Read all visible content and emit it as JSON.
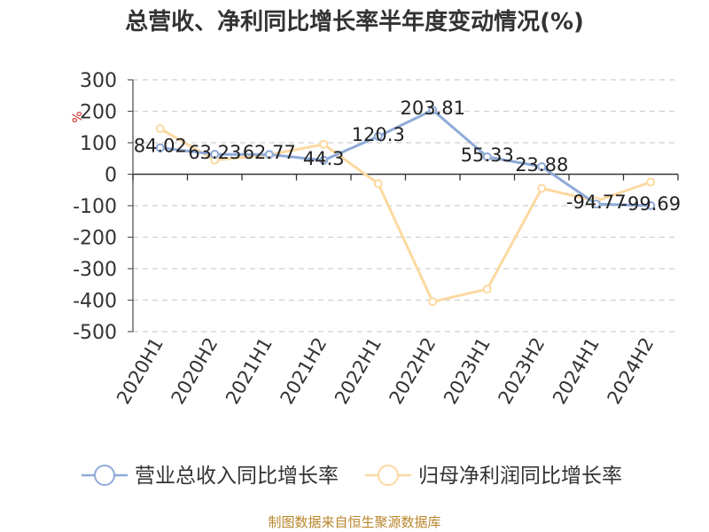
{
  "chart_data": {
    "type": "line",
    "title": "总营收、净利同比增长率半年度变动情况(%)",
    "ylabel": "%",
    "ylim": [
      -500,
      300
    ],
    "yticks": [
      300,
      200,
      100,
      0,
      -100,
      -200,
      -300,
      -400,
      -500
    ],
    "grid": true,
    "legend_position": "bottom",
    "categories": [
      "2020H1",
      "2020H2",
      "2021H1",
      "2021H2",
      "2022H1",
      "2022H2",
      "2023H1",
      "2023H2",
      "2024H1",
      "2024H2"
    ],
    "series": [
      {
        "name": "营业总收入同比增长率",
        "color": "#8eaad8",
        "values": [
          84.02,
          63.23,
          62.77,
          44.3,
          120.3,
          203.81,
          55.33,
          23.88,
          -94.77,
          -99.69
        ],
        "data_labels": [
          "84.02",
          "63.23",
          "62.77",
          "44.3",
          "120.3",
          "203.81",
          "55.33",
          "23.88",
          "-94.77",
          "-99.69"
        ]
      },
      {
        "name": "归母净利润同比增长率",
        "color": "#fcd9a0",
        "values": [
          145,
          45,
          62,
          95,
          -30,
          -405,
          -365,
          -45,
          -85,
          -25
        ]
      }
    ],
    "source": "制图数据来自恒生聚源数据库"
  }
}
